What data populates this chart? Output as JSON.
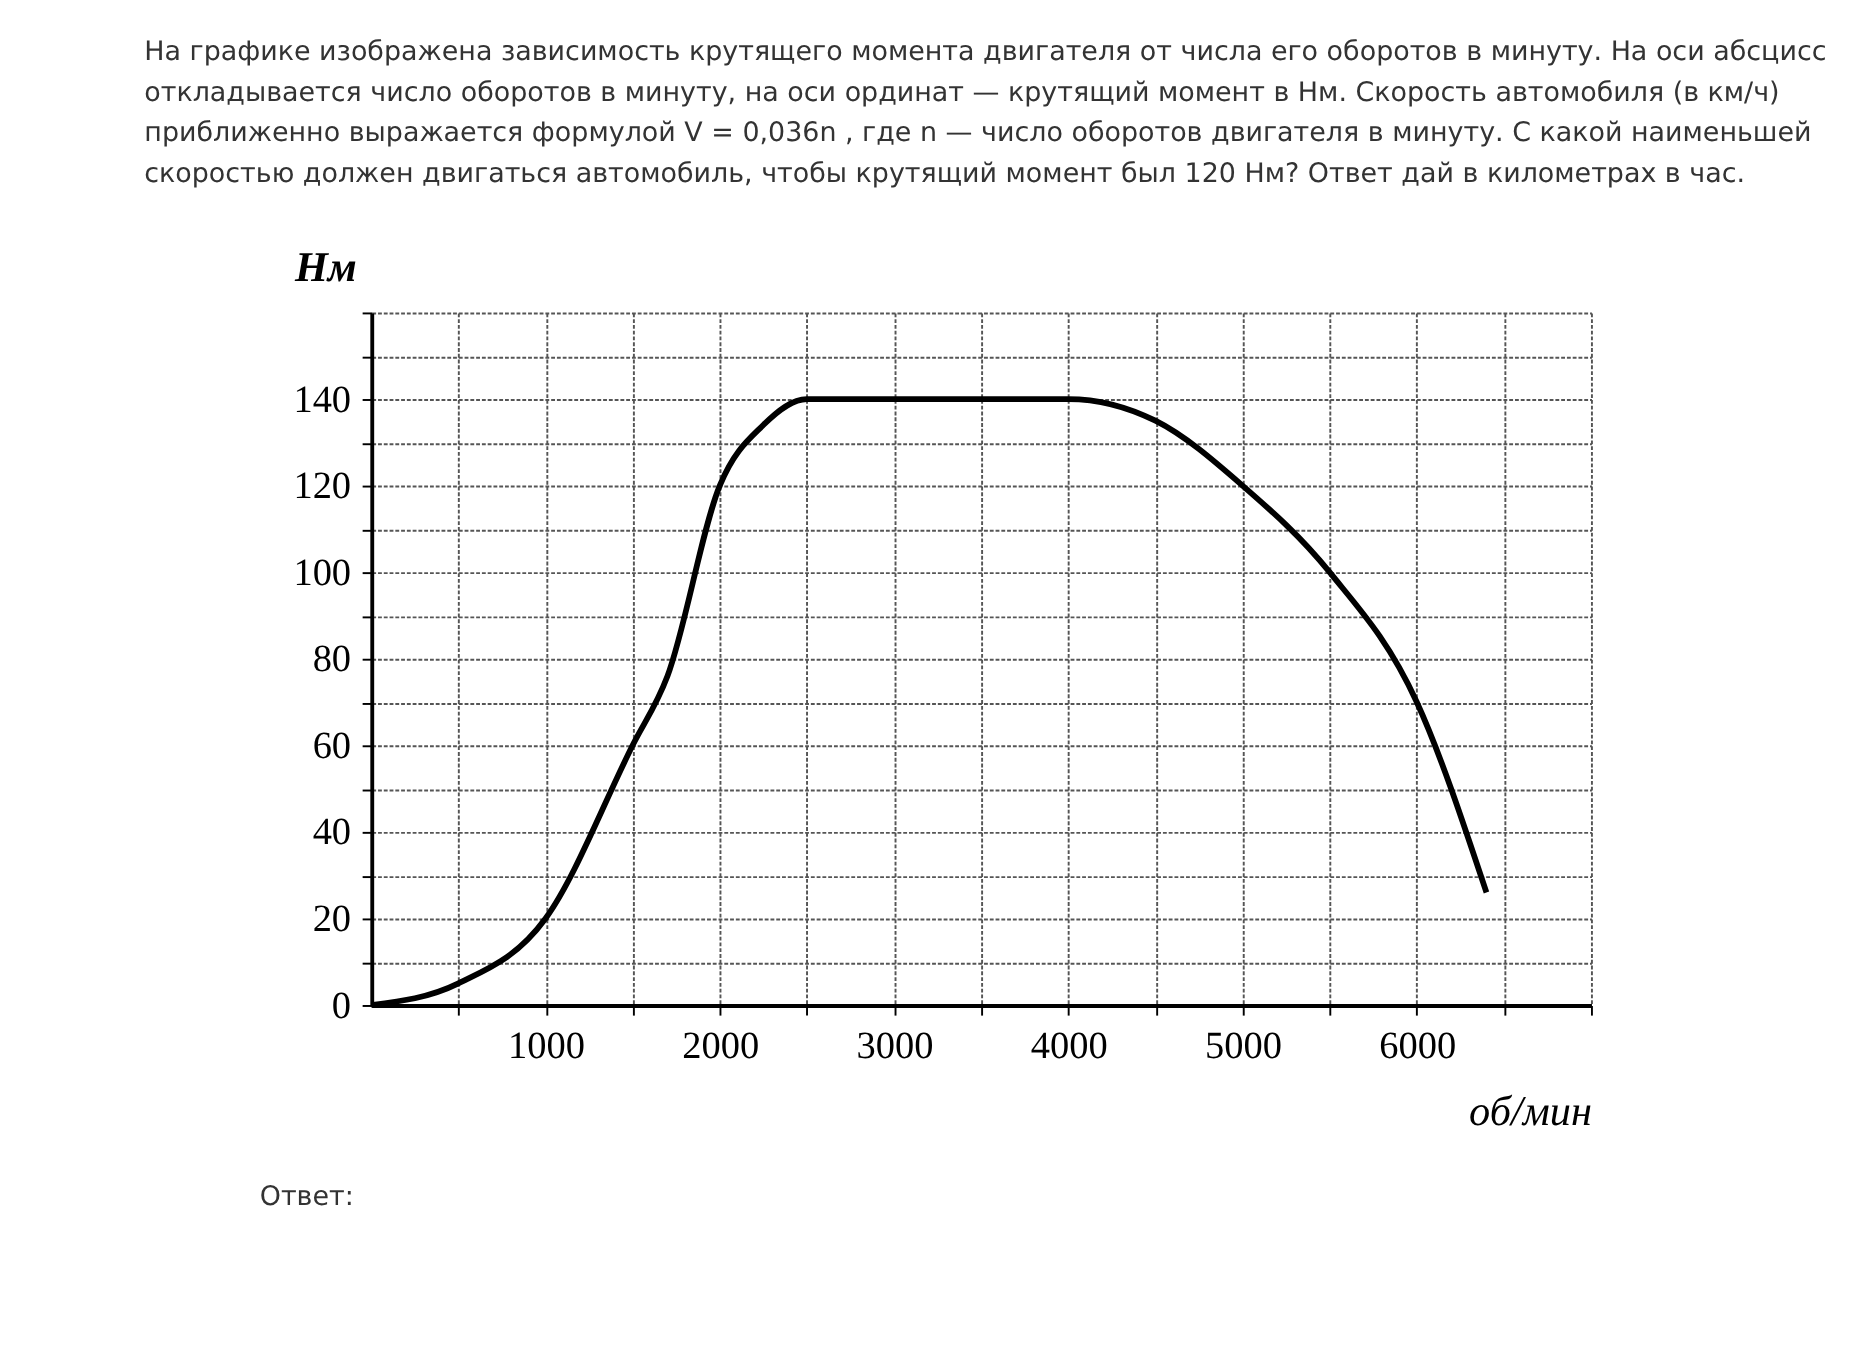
{
  "chart_data": {
    "type": "line",
    "title": "На графике изображена зависимость крутящего момента двигателя от числа его оборотов в минуту. На оси абсцисс откладывается число оборотов в минуту, на оси ординат — крутящий момент в Нм. Скорость автомобиля (в км/ч) приближенно выражается формулой V = 0,036n , где n — число оборотов двигателя в минуту. С какой наименьшей скоростью должен двигаться автомобиль, чтобы крутящий момент был 120 Нм? Ответ дай в километрах в час.",
    "annotations": [
      "Ответ:"
    ],
    "xlabel": "об/мин",
    "ylabel": "Нм",
    "x": [
      0,
      500,
      1000,
      1500,
      1700,
      2000,
      2250,
      2500,
      3000,
      3500,
      4000,
      4500,
      5000,
      5500,
      6000,
      6400
    ],
    "series": [
      {
        "color": "#000000",
        "values": [
          0,
          5,
          20,
          60,
          76,
          120,
          134,
          140,
          140,
          140,
          140,
          135,
          120,
          100,
          70,
          26
        ]
      }
    ],
    "xlim": [
      0,
      7000
    ],
    "ylim": [
      0,
      160
    ],
    "xticks": [
      {
        "value": 500,
        "label": null
      },
      1000,
      {
        "value": 1500,
        "label": null
      },
      2000,
      {
        "value": 2500,
        "label": null
      },
      3000,
      {
        "value": 3500,
        "label": null
      },
      4000,
      {
        "value": 4500,
        "label": null
      },
      5000,
      {
        "value": 5500,
        "label": null
      },
      6000,
      {
        "value": 6500,
        "label": null
      },
      {
        "value": 7000,
        "label": null
      }
    ],
    "yticks": [
      0,
      {
        "value": 10,
        "label": null
      },
      20,
      {
        "value": 30,
        "label": null
      },
      40,
      {
        "value": 50,
        "label": null
      },
      60,
      {
        "value": 70,
        "label": null
      },
      80,
      {
        "value": 90,
        "label": null
      },
      100,
      {
        "value": 110,
        "label": null
      },
      120,
      {
        "value": 130,
        "label": null
      },
      140,
      {
        "value": 150,
        "label": null
      },
      {
        "value": 160,
        "label": null
      }
    ],
    "grid": true,
    "marker": "none",
    "line_style": "solid"
  }
}
